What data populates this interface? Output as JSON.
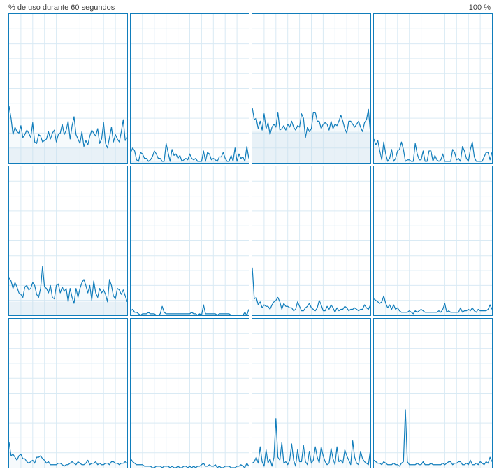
{
  "header": {
    "title": "% de uso durante 60 segundos",
    "max_label": "100 %"
  },
  "colors": {
    "accent": "#117dbb",
    "fill": "#f1f6fa",
    "grid": "#d9eaf4",
    "background": "#ffffff"
  },
  "grid_layout": {
    "columns": 4,
    "rows": 3
  },
  "chart_data": [
    {
      "type": "area",
      "ylim": [
        0,
        100
      ],
      "grid": true,
      "avg": 10,
      "values": [
        38,
        30,
        19,
        24,
        21,
        20,
        25,
        17,
        19,
        22,
        20,
        17,
        27,
        14,
        13,
        19,
        18,
        14,
        15,
        16,
        21,
        16,
        20,
        22,
        14,
        19,
        20,
        26,
        19,
        22,
        28,
        16,
        25,
        31,
        19,
        16,
        13,
        21,
        11,
        15,
        12,
        18,
        22,
        20,
        18,
        23,
        13,
        16,
        27,
        13,
        10,
        17,
        24,
        14,
        19,
        16,
        14,
        21,
        29,
        15,
        17
      ]
    },
    {
      "type": "area",
      "ylim": [
        0,
        100
      ],
      "grid": true,
      "avg": 1,
      "values": [
        7,
        10,
        8,
        2,
        1,
        7,
        6,
        3,
        3,
        1,
        2,
        4,
        8,
        6,
        3,
        3,
        1,
        1,
        13,
        7,
        1,
        9,
        5,
        6,
        3,
        5,
        1,
        2,
        3,
        2,
        6,
        3,
        2,
        3,
        1,
        1,
        1,
        8,
        1,
        7,
        6,
        2,
        3,
        2,
        1,
        4,
        4,
        7,
        3,
        1,
        1,
        5,
        1,
        10,
        1,
        6,
        3,
        4,
        1,
        11,
        3
      ]
    },
    {
      "type": "area",
      "ylim": [
        0,
        100
      ],
      "grid": true,
      "avg": 21,
      "values": [
        37,
        29,
        30,
        23,
        28,
        22,
        33,
        23,
        27,
        19,
        24,
        26,
        24,
        34,
        22,
        23,
        25,
        22,
        26,
        24,
        28,
        24,
        22,
        25,
        24,
        33,
        30,
        17,
        24,
        21,
        23,
        34,
        34,
        28,
        28,
        23,
        26,
        27,
        26,
        22,
        28,
        23,
        26,
        25,
        28,
        32,
        28,
        23,
        20,
        28,
        28,
        26,
        24,
        26,
        28,
        24,
        21,
        27,
        29,
        36,
        20
      ]
    },
    {
      "type": "area",
      "ylim": [
        0,
        100
      ],
      "grid": true,
      "avg": 0,
      "values": [
        16,
        12,
        15,
        8,
        2,
        14,
        6,
        1,
        3,
        9,
        1,
        3,
        8,
        9,
        14,
        9,
        1,
        2,
        2,
        1,
        1,
        13,
        6,
        2,
        2,
        8,
        1,
        1,
        8,
        8,
        1,
        5,
        2,
        1,
        2,
        6,
        1,
        1,
        1,
        1,
        9,
        7,
        2,
        3,
        1,
        11,
        8,
        3,
        1,
        9,
        14,
        4,
        1,
        1,
        1,
        1,
        4,
        7,
        7,
        2,
        7
      ]
    },
    {
      "type": "area",
      "ylim": [
        0,
        100
      ],
      "grid": true,
      "avg": 9,
      "values": [
        25,
        23,
        18,
        22,
        19,
        15,
        14,
        12,
        19,
        20,
        17,
        18,
        22,
        20,
        14,
        12,
        18,
        33,
        19,
        18,
        15,
        20,
        12,
        11,
        20,
        21,
        15,
        19,
        16,
        18,
        9,
        18,
        12,
        8,
        18,
        12,
        18,
        22,
        24,
        20,
        15,
        20,
        10,
        23,
        15,
        12,
        18,
        15,
        17,
        14,
        9,
        24,
        20,
        13,
        11,
        18,
        17,
        14,
        17,
        13,
        9
      ]
    },
    {
      "type": "area",
      "ylim": [
        0,
        100
      ],
      "grid": true,
      "avg": 0,
      "values": [
        3,
        4,
        2,
        2,
        1,
        0,
        1,
        1,
        1,
        2,
        1,
        1,
        1,
        0,
        0,
        1,
        6,
        2,
        1,
        1,
        1,
        1,
        1,
        1,
        1,
        1,
        1,
        1,
        1,
        1,
        1,
        2,
        1,
        1,
        0,
        1,
        0,
        7,
        1,
        1,
        1,
        1,
        1,
        1,
        0,
        1,
        1,
        1,
        1,
        1,
        1,
        0,
        0,
        0,
        0,
        0,
        0,
        0,
        2,
        0,
        4
      ]
    },
    {
      "type": "area",
      "ylim": [
        0,
        100
      ],
      "grid": true,
      "avg": 0,
      "values": [
        32,
        11,
        12,
        7,
        9,
        5,
        7,
        6,
        6,
        4,
        7,
        9,
        10,
        12,
        9,
        4,
        8,
        6,
        6,
        5,
        5,
        3,
        4,
        9,
        6,
        3,
        3,
        5,
        6,
        8,
        5,
        4,
        3,
        5,
        10,
        7,
        3,
        3,
        6,
        4,
        7,
        5,
        2,
        5,
        3,
        4,
        4,
        6,
        5,
        3,
        4,
        4,
        5,
        4,
        3,
        4,
        4,
        7,
        5,
        4,
        7
      ]
    },
    {
      "type": "area",
      "ylim": [
        0,
        100
      ],
      "grid": true,
      "avg": 0,
      "values": [
        11,
        10,
        9,
        8,
        9,
        13,
        8,
        5,
        7,
        4,
        7,
        4,
        5,
        3,
        2,
        2,
        2,
        2,
        3,
        2,
        1,
        3,
        2,
        3,
        4,
        3,
        2,
        2,
        2,
        2,
        2,
        2,
        2,
        3,
        2,
        4,
        8,
        2,
        3,
        2,
        2,
        2,
        2,
        2,
        5,
        2,
        3,
        3,
        4,
        3,
        5,
        3,
        2,
        4,
        3,
        3,
        3,
        3,
        4,
        7,
        4
      ]
    },
    {
      "type": "area",
      "ylim": [
        0,
        100
      ],
      "grid": true,
      "avg": 0,
      "values": [
        17,
        8,
        9,
        7,
        5,
        8,
        9,
        6,
        6,
        4,
        3,
        4,
        5,
        3,
        7,
        7,
        8,
        6,
        5,
        3,
        4,
        2,
        2,
        2,
        2,
        3,
        3,
        2,
        1,
        2,
        2,
        3,
        4,
        3,
        2,
        4,
        3,
        2,
        2,
        3,
        5,
        2,
        3,
        3,
        4,
        2,
        3,
        2,
        2,
        3,
        3,
        2,
        4,
        4,
        3,
        3,
        2,
        3,
        3,
        4,
        3
      ]
    },
    {
      "type": "area",
      "ylim": [
        0,
        100
      ],
      "grid": true,
      "avg": 0,
      "values": [
        6,
        4,
        3,
        2,
        2,
        2,
        2,
        1,
        1,
        1,
        1,
        0,
        0,
        1,
        1,
        1,
        0,
        1,
        1,
        1,
        0,
        1,
        0,
        0,
        1,
        0,
        0,
        1,
        1,
        0,
        1,
        0,
        1,
        0,
        1,
        1,
        2,
        3,
        1,
        1,
        2,
        1,
        1,
        2,
        0,
        1,
        0,
        0,
        1,
        1,
        1,
        0,
        0,
        0,
        1,
        1,
        2,
        1,
        0,
        3,
        1
      ]
    },
    {
      "type": "area",
      "ylim": [
        0,
        100
      ],
      "grid": true,
      "avg": 0,
      "values": [
        3,
        4,
        7,
        3,
        14,
        4,
        1,
        12,
        3,
        6,
        1,
        7,
        33,
        7,
        5,
        17,
        3,
        4,
        2,
        5,
        16,
        5,
        1,
        12,
        4,
        4,
        15,
        4,
        2,
        11,
        3,
        5,
        14,
        7,
        3,
        14,
        8,
        4,
        2,
        3,
        13,
        6,
        2,
        14,
        4,
        5,
        3,
        12,
        8,
        5,
        2,
        18,
        7,
        3,
        2,
        11,
        6,
        4,
        3,
        2,
        12
      ]
    },
    {
      "type": "area",
      "ylim": [
        0,
        100
      ],
      "grid": true,
      "avg": 0,
      "values": [
        5,
        4,
        3,
        3,
        2,
        4,
        3,
        2,
        2,
        2,
        3,
        2,
        2,
        1,
        3,
        4,
        39,
        4,
        2,
        2,
        2,
        2,
        3,
        2,
        2,
        4,
        2,
        2,
        2,
        3,
        2,
        2,
        2,
        2,
        2,
        3,
        2,
        3,
        4,
        4,
        2,
        3,
        3,
        4,
        4,
        2,
        2,
        3,
        2,
        5,
        2,
        2,
        3,
        2,
        4,
        3,
        2,
        4,
        3,
        7,
        4
      ]
    }
  ]
}
